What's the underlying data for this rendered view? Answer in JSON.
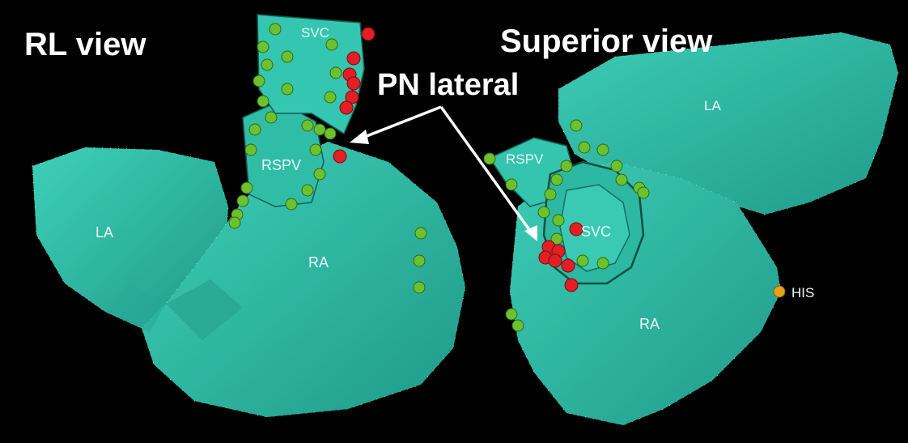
{
  "panels": {
    "left": {
      "title": "RL view",
      "labels": {
        "svc": "SVC",
        "rspv": "RSPV",
        "la": "LA",
        "ra": "RA"
      }
    },
    "right": {
      "title": "Superior view",
      "labels": {
        "la": "LA",
        "rspv": "RSPV",
        "svc": "SVC",
        "ra": "RA",
        "his": "HIS"
      }
    }
  },
  "callout": {
    "text": "PN lateral"
  },
  "colors": {
    "background": "#000000",
    "chamber": "#33c4ae",
    "chamber_shade": "#229585",
    "ablation_point": "#6ec12e",
    "phrenic_point": "#e11f25",
    "his_point": "#e3a41a",
    "text": "#ffffff"
  },
  "legend_markers": {
    "green": "ablation-lesion-marker",
    "red": "phrenic-nerve-capture-marker",
    "orange": "his-bundle-marker"
  }
}
